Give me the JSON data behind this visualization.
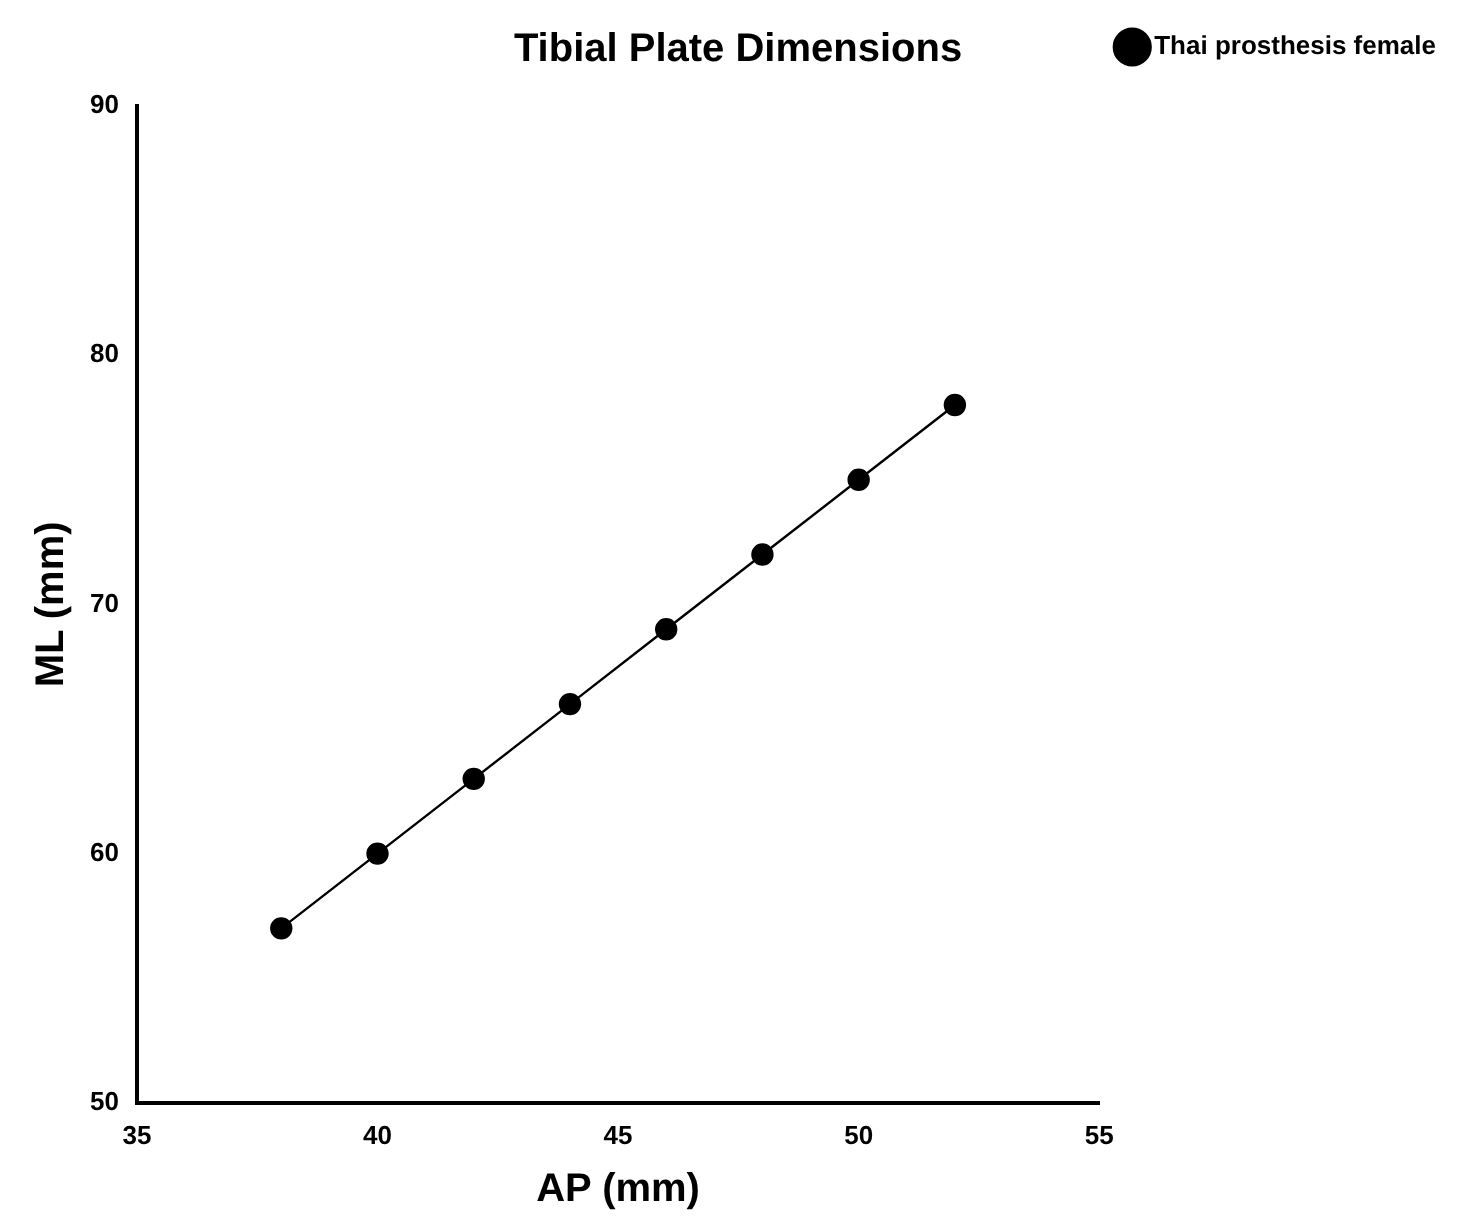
{
  "chart_data": {
    "type": "line",
    "title": "Tibial Plate Dimensions",
    "xlabel": "AP (mm)",
    "ylabel": "ML (mm)",
    "x": [
      38,
      40,
      42,
      44,
      46,
      48,
      50,
      52
    ],
    "series": [
      {
        "name": "Thai prosthesis female",
        "color": "#000000",
        "values": [
          57,
          60,
          63,
          66,
          69,
          72,
          75,
          78
        ]
      }
    ],
    "xlim": [
      35,
      55
    ],
    "xticks": [
      35,
      40,
      45,
      50,
      55
    ],
    "ylim": [
      50,
      90
    ],
    "yticks": [
      50,
      60,
      70,
      80,
      90
    ],
    "grid": false,
    "legend": "top right",
    "marker": "circle",
    "line_style": "solid"
  }
}
